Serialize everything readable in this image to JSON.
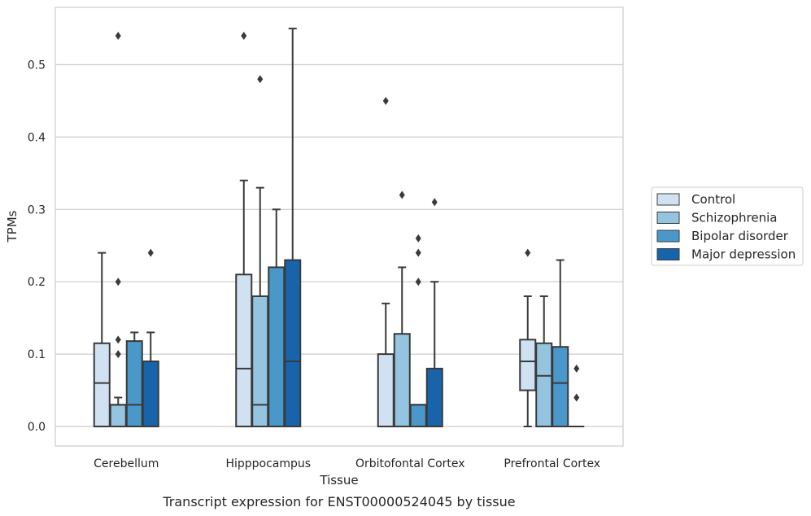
{
  "caption": "Transcript expression for ENST00000524045 by tissue",
  "chart_data": {
    "type": "box",
    "xlabel": "Tissue",
    "ylabel": "TPMs",
    "ylim": [
      -0.027,
      0.58
    ],
    "yticks": [
      0.0,
      0.1,
      0.2,
      0.3,
      0.4,
      0.5
    ],
    "ytick_labels": [
      "0.0",
      "0.1",
      "0.2",
      "0.3",
      "0.4",
      "0.5"
    ],
    "grid": "horizontal",
    "legend_position": "right",
    "categories": [
      "Cerebellum",
      "Hipppocampus",
      "Orbitofontal Cortex",
      "Prefrontal Cortex"
    ],
    "series": [
      {
        "name": "Control",
        "color": "#d0e1f2",
        "boxes": [
          {
            "q1": 0.0,
            "median": 0.06,
            "q3": 0.115,
            "whisker_low": 0.0,
            "whisker_high": 0.24,
            "outliers": []
          },
          {
            "q1": 0.0,
            "median": 0.08,
            "q3": 0.21,
            "whisker_low": 0.0,
            "whisker_high": 0.34,
            "outliers": [
              0.54
            ]
          },
          {
            "q1": 0.0,
            "median": 0.0,
            "q3": 0.1,
            "whisker_low": 0.0,
            "whisker_high": 0.17,
            "outliers": [
              0.45
            ]
          },
          {
            "q1": 0.05,
            "median": 0.09,
            "q3": 0.12,
            "whisker_low": 0.0,
            "whisker_high": 0.18,
            "outliers": [
              0.24
            ]
          }
        ]
      },
      {
        "name": "Schizophrenia",
        "color": "#94c4df",
        "boxes": [
          {
            "q1": 0.0,
            "median": 0.03,
            "q3": 0.03,
            "whisker_low": 0.0,
            "whisker_high": 0.04,
            "outliers": [
              0.1,
              0.12,
              0.2,
              0.54
            ]
          },
          {
            "q1": 0.0,
            "median": 0.03,
            "q3": 0.18,
            "whisker_low": 0.0,
            "whisker_high": 0.33,
            "outliers": [
              0.48
            ]
          },
          {
            "q1": 0.0,
            "median": 0.0,
            "q3": 0.128,
            "whisker_low": 0.0,
            "whisker_high": 0.22,
            "outliers": [
              0.32
            ]
          },
          {
            "q1": 0.0,
            "median": 0.07,
            "q3": 0.115,
            "whisker_low": 0.0,
            "whisker_high": 0.18,
            "outliers": []
          }
        ]
      },
      {
        "name": "Bipolar disorder",
        "color": "#4a98c9",
        "boxes": [
          {
            "q1": 0.0,
            "median": 0.03,
            "q3": 0.118,
            "whisker_low": 0.0,
            "whisker_high": 0.13,
            "outliers": []
          },
          {
            "q1": 0.0,
            "median": 0.0,
            "q3": 0.22,
            "whisker_low": 0.0,
            "whisker_high": 0.3,
            "outliers": []
          },
          {
            "q1": 0.0,
            "median": 0.03,
            "q3": 0.03,
            "whisker_low": 0.0,
            "whisker_high": 0.03,
            "outliers": [
              0.2,
              0.24,
              0.26
            ]
          },
          {
            "q1": 0.0,
            "median": 0.06,
            "q3": 0.11,
            "whisker_low": 0.0,
            "whisker_high": 0.23,
            "outliers": []
          }
        ]
      },
      {
        "name": "Major depression",
        "color": "#1764ab",
        "boxes": [
          {
            "q1": 0.0,
            "median": 0.0,
            "q3": 0.09,
            "whisker_low": 0.0,
            "whisker_high": 0.13,
            "outliers": [
              0.24
            ]
          },
          {
            "q1": 0.0,
            "median": 0.09,
            "q3": 0.23,
            "whisker_low": 0.0,
            "whisker_high": 0.55,
            "outliers": []
          },
          {
            "q1": 0.0,
            "median": 0.0,
            "q3": 0.08,
            "whisker_low": 0.0,
            "whisker_high": 0.2,
            "outliers": [
              0.31
            ]
          },
          {
            "q1": 0.0,
            "median": 0.0,
            "q3": 0.0,
            "whisker_low": 0.0,
            "whisker_high": 0.0,
            "outliers": [
              0.04,
              0.08
            ]
          }
        ]
      }
    ]
  }
}
